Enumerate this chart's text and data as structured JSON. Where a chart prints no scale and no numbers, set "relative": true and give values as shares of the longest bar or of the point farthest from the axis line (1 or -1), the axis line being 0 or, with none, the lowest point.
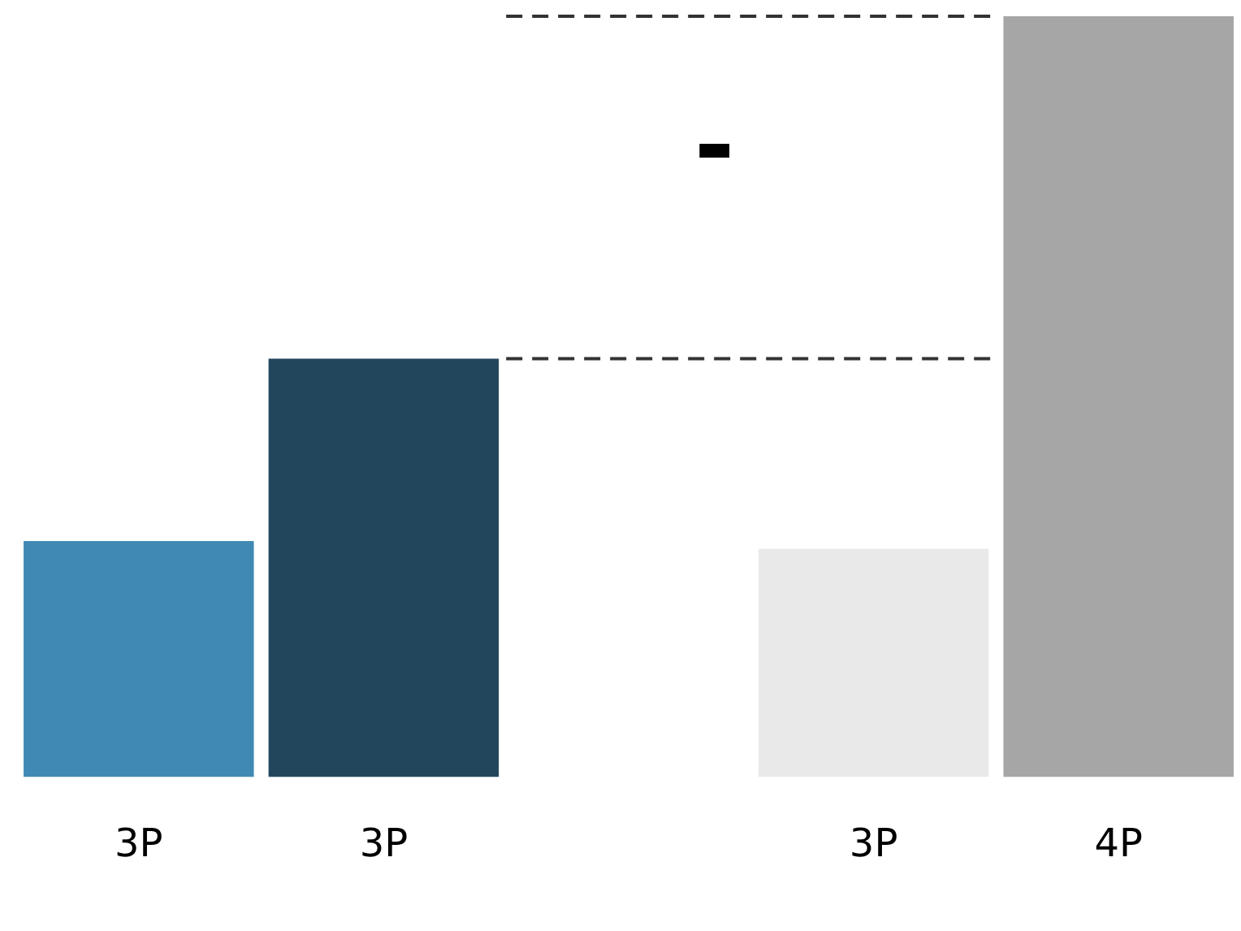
{
  "chart_data": {
    "type": "bar",
    "relative": true,
    "categories": [
      "3P",
      "3P",
      null,
      "3P",
      "4P"
    ],
    "values": [
      0.31,
      0.55,
      null,
      0.3,
      1
    ],
    "colors": [
      "#4189b5",
      "#22475c",
      "#ffffff",
      "#e9e9e9",
      "#a6a6a6"
    ],
    "ref_lines": [
      {
        "axis": "y",
        "value": 1,
        "line_style": "dashed",
        "color": "#333333"
      },
      {
        "axis": "y",
        "value": 0.55,
        "line_style": "dashed",
        "color": "#333333"
      }
    ],
    "annotations": [
      "-"
    ],
    "grid": false,
    "legend": false
  }
}
